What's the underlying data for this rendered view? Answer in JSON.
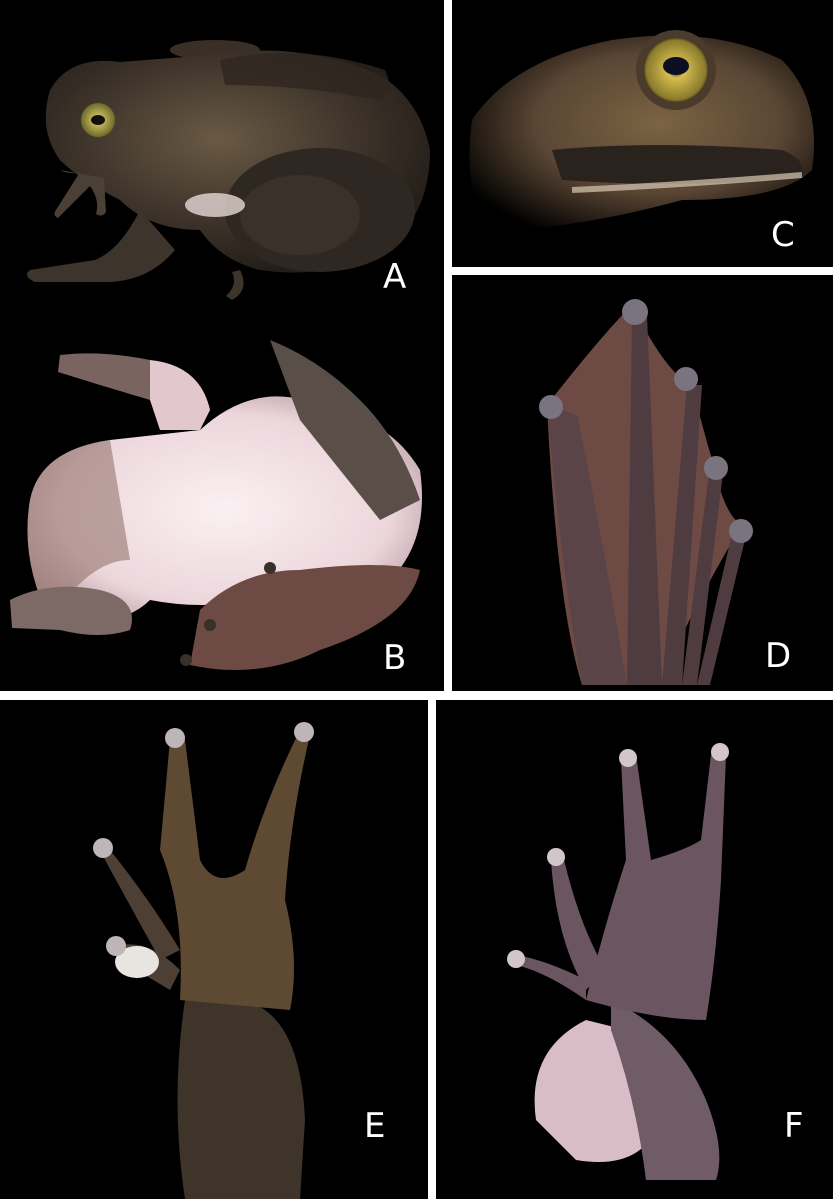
{
  "figure": {
    "panels": [
      {
        "id": "A",
        "label": "A",
        "subject": "frog-lateral-view"
      },
      {
        "id": "B",
        "label": "B",
        "subject": "frog-ventral-view"
      },
      {
        "id": "C",
        "label": "C",
        "subject": "head-close-up"
      },
      {
        "id": "D",
        "label": "D",
        "subject": "foot-ventral-view"
      },
      {
        "id": "E",
        "label": "E",
        "subject": "hand-dorsal-view"
      },
      {
        "id": "F",
        "label": "F",
        "subject": "hand-ventral-view"
      }
    ]
  },
  "colors": {
    "background": "#000000",
    "separator": "#ffffff",
    "skin_dark": "#3b3128",
    "skin_olive": "#6b5a3a",
    "belly": "#efe0e4",
    "web": "#6e4a44",
    "iris": "#b59a2a"
  }
}
